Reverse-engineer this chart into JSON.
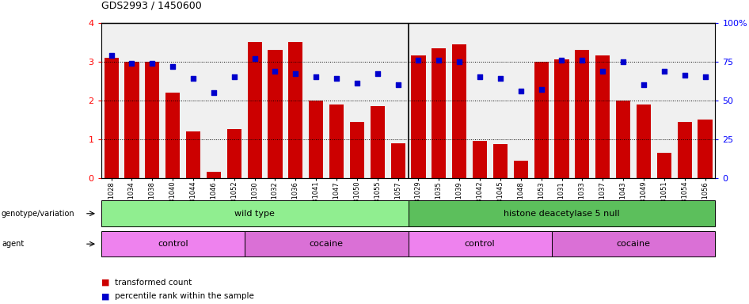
{
  "title": "GDS2993 / 1450600",
  "samples": [
    "GSM231028",
    "GSM231034",
    "GSM231038",
    "GSM231040",
    "GSM231044",
    "GSM231046",
    "GSM231052",
    "GSM231030",
    "GSM231032",
    "GSM231036",
    "GSM231041",
    "GSM231047",
    "GSM231050",
    "GSM231055",
    "GSM231057",
    "GSM231029",
    "GSM231035",
    "GSM231039",
    "GSM231042",
    "GSM231045",
    "GSM231048",
    "GSM231053",
    "GSM231031",
    "GSM231033",
    "GSM231037",
    "GSM231043",
    "GSM231049",
    "GSM231051",
    "GSM231054",
    "GSM231056"
  ],
  "bar_values": [
    3.1,
    3.0,
    3.0,
    2.2,
    1.2,
    0.15,
    1.25,
    3.5,
    3.3,
    3.5,
    2.0,
    1.9,
    1.45,
    1.85,
    0.9,
    3.15,
    3.35,
    3.45,
    0.95,
    0.88,
    0.45,
    3.0,
    3.05,
    3.3,
    3.15,
    2.0,
    1.9,
    0.65,
    1.45,
    1.5
  ],
  "dot_values_pct": [
    79,
    74,
    74,
    72,
    64,
    55,
    65,
    77,
    69,
    67,
    65,
    64,
    61,
    67,
    60,
    76,
    76,
    75,
    65,
    64,
    56,
    57,
    76,
    76,
    69,
    75,
    60,
    69,
    66,
    65
  ],
  "geno_groups": [
    {
      "label": "wild type",
      "start": 0,
      "end": 14,
      "color": "#90EE90"
    },
    {
      "label": "histone deacetylase 5 null",
      "start": 15,
      "end": 29,
      "color": "#5CBF5C"
    }
  ],
  "agent_groups": [
    {
      "label": "control",
      "start": 0,
      "end": 6,
      "color": "#EE82EE"
    },
    {
      "label": "cocaine",
      "start": 7,
      "end": 14,
      "color": "#DA70D6"
    },
    {
      "label": "control",
      "start": 15,
      "end": 21,
      "color": "#EE82EE"
    },
    {
      "label": "cocaine",
      "start": 22,
      "end": 29,
      "color": "#DA70D6"
    }
  ],
  "bar_color": "#CC0000",
  "dot_color": "#0000CC",
  "ylim_left": [
    0,
    4
  ],
  "ylim_right": [
    0,
    100
  ],
  "yticks_left": [
    0,
    1,
    2,
    3,
    4
  ],
  "yticks_right": [
    0,
    25,
    50,
    75,
    100
  ],
  "legend_items": [
    {
      "label": "transformed count",
      "color": "#CC0000"
    },
    {
      "label": "percentile rank within the sample",
      "color": "#0000CC"
    }
  ],
  "plot_bgcolor": "#F0F0F0",
  "sep_index": 14.5
}
